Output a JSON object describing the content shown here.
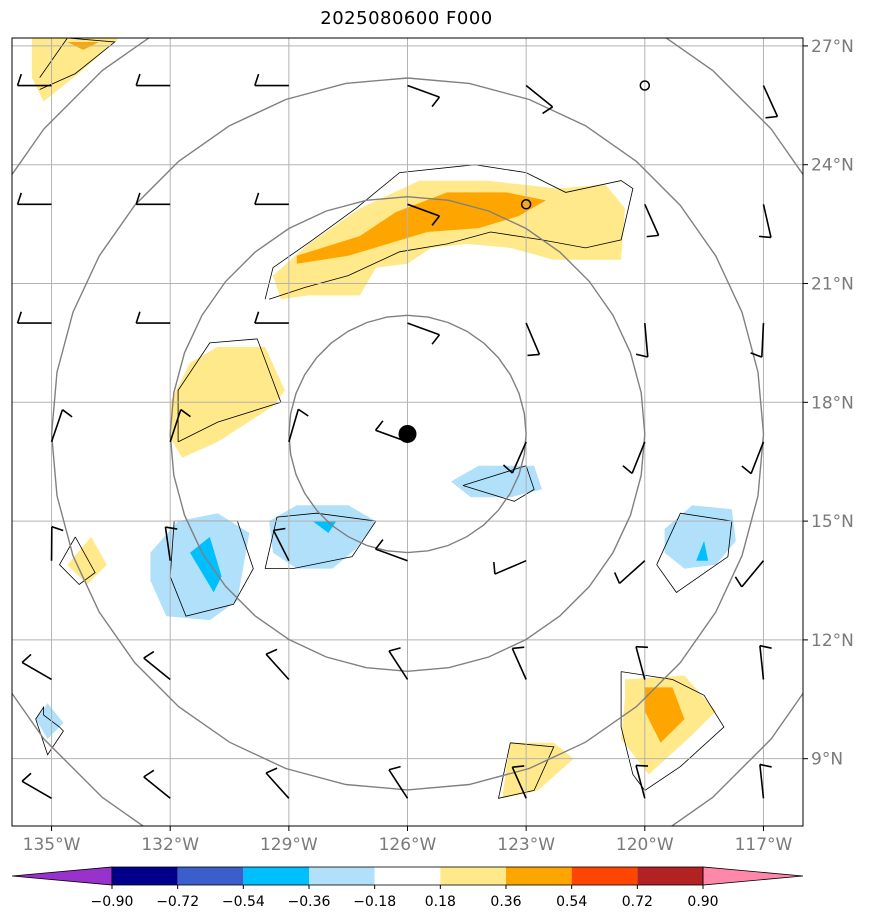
{
  "title": "2025080600 F000",
  "map": {
    "lon_range": [
      -136.0,
      -116.0
    ],
    "lat_range": [
      7.3,
      27.2
    ],
    "gridlines": true,
    "center": {
      "lon": -126.0,
      "lat": 17.2
    },
    "range_rings_deg": [
      3,
      6,
      9,
      12
    ],
    "lat_ticks": [
      {
        "value": 27,
        "label": "27°N"
      },
      {
        "value": 24,
        "label": "24°N"
      },
      {
        "value": 21,
        "label": "21°N"
      },
      {
        "value": 18,
        "label": "18°N"
      },
      {
        "value": 15,
        "label": "15°N"
      },
      {
        "value": 12,
        "label": "12°N"
      },
      {
        "value": 9,
        "label": "9°N"
      }
    ],
    "lon_ticks": [
      {
        "value": -135,
        "label": "135°W"
      },
      {
        "value": -132,
        "label": "132°W"
      },
      {
        "value": -129,
        "label": "129°W"
      },
      {
        "value": -126,
        "label": "126°W"
      },
      {
        "value": -123,
        "label": "123°W"
      },
      {
        "value": -120,
        "label": "120°W"
      },
      {
        "value": -117,
        "label": "117°W"
      }
    ]
  },
  "colorbar": {
    "colors": [
      "#9932cc",
      "#00008b",
      "#3a5fcd",
      "#00bfff",
      "#b0e0fa",
      "#ffffff",
      "#ffe98a",
      "#ffa500",
      "#ff4500",
      "#b22222",
      "#ff88aa"
    ],
    "tick_labels": [
      "−0.90",
      "−0.72",
      "−0.54",
      "−0.36",
      "−0.18",
      "0.18",
      "0.36",
      "0.54",
      "0.72",
      "0.90"
    ]
  },
  "colors": {
    "positive_light": "#ffe98a",
    "positive_mid": "#ffa500",
    "positive_high": "#ff6a00",
    "negative_light": "#b0e0fa",
    "negative_mid": "#00bfff",
    "ring": "#808080",
    "grid": "#b3b3b3"
  },
  "wind_barbs": {
    "lats": [
      8,
      11,
      14,
      17,
      20,
      23,
      26
    ],
    "lons": [
      -135,
      -132,
      -129,
      -126,
      -123,
      -120,
      -117
    ],
    "calm_points": [
      {
        "lon": -120,
        "lat": 26
      },
      {
        "lon": -123,
        "lat": 23
      }
    ],
    "storm_center": {
      "lon": -126,
      "lat": 17.2
    }
  }
}
